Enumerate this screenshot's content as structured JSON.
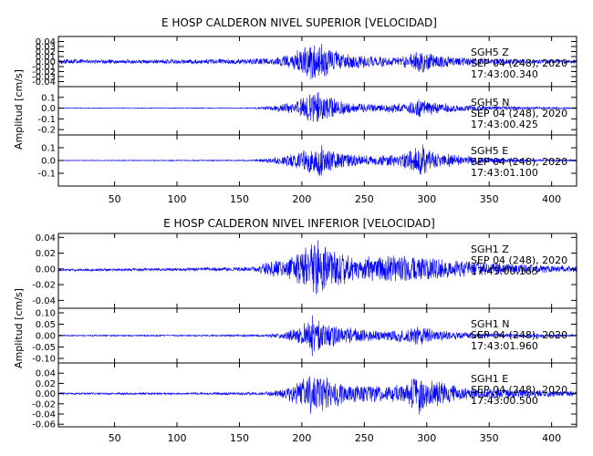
{
  "figure_colors": {
    "trace": "#0000ff",
    "axes": "#000000",
    "background": "#ffffff"
  },
  "chart_data": [
    {
      "type": "line",
      "title": "E HOSP CALDERON NIVEL SUPERIOR [VELOCIDAD]",
      "ylabel": "Amplitud [cm/s]",
      "xlabel": "",
      "xlim": [
        5,
        420
      ],
      "x_ticks": [
        50,
        100,
        150,
        200,
        250,
        300,
        350,
        400
      ],
      "x_tick_labels": [
        "50",
        "100",
        "150",
        "200",
        "250",
        "300",
        "350",
        "400"
      ],
      "grid": false,
      "panels": [
        {
          "station": "SGH5",
          "component": "Z",
          "date": "SEP 04 (248), 2020",
          "time": "17:43:00.340",
          "ylim": [
            -0.05,
            0.05
          ],
          "y_ticks": [
            0.04,
            0.03,
            0.02,
            0.01,
            0.0,
            -0.01,
            -0.02,
            -0.03,
            -0.04
          ],
          "y_tick_labels": [
            "0.04",
            "0.03",
            "0.02",
            "0.01",
            "0.00",
            "-0.01",
            "-0.02",
            "-0.03",
            "-0.04"
          ],
          "peak_amplitude": 0.042,
          "envelope": [
            [
              5,
              0.0045
            ],
            [
              40,
              0.004
            ],
            [
              100,
              0.0045
            ],
            [
              150,
              0.0055
            ],
            [
              175,
              0.007
            ],
            [
              190,
              0.015
            ],
            [
              205,
              0.035
            ],
            [
              212,
              0.042
            ],
            [
              220,
              0.03
            ],
            [
              235,
              0.016
            ],
            [
              260,
              0.01
            ],
            [
              280,
              0.011
            ],
            [
              290,
              0.02
            ],
            [
              296,
              0.026
            ],
            [
              305,
              0.014
            ],
            [
              340,
              0.008
            ],
            [
              380,
              0.005
            ],
            [
              420,
              0.004
            ]
          ]
        },
        {
          "station": "SGH5",
          "component": "N",
          "date": "SEP 04 (248), 2020",
          "time": "17:43:00.425",
          "ylim": [
            -0.25,
            0.2
          ],
          "y_ticks": [
            0.1,
            0.0,
            -0.1,
            -0.2
          ],
          "y_tick_labels": [
            "0.1",
            "0.0",
            "-0.1",
            "-0.2"
          ],
          "peak_amplitude": 0.2,
          "envelope": [
            [
              5,
              0.003
            ],
            [
              100,
              0.004
            ],
            [
              160,
              0.005
            ],
            [
              175,
              0.02
            ],
            [
              195,
              0.06
            ],
            [
              205,
              0.14
            ],
            [
              212,
              0.2
            ],
            [
              222,
              0.11
            ],
            [
              240,
              0.045
            ],
            [
              265,
              0.035
            ],
            [
              285,
              0.05
            ],
            [
              295,
              0.1
            ],
            [
              305,
              0.06
            ],
            [
              330,
              0.03
            ],
            [
              380,
              0.012
            ],
            [
              420,
              0.008
            ]
          ]
        },
        {
          "station": "SGH5",
          "component": "E",
          "date": "SEP 04 (248), 2020",
          "time": "17:43:01.100",
          "ylim": [
            -0.2,
            0.2
          ],
          "y_ticks": [
            0.1,
            0.0,
            -0.1
          ],
          "y_tick_labels": [
            "0.1",
            "0.0",
            "-0.1"
          ],
          "peak_amplitude": 0.15,
          "envelope": [
            [
              5,
              0.003
            ],
            [
              100,
              0.004
            ],
            [
              160,
              0.005
            ],
            [
              175,
              0.02
            ],
            [
              195,
              0.06
            ],
            [
              205,
              0.1
            ],
            [
              212,
              0.15
            ],
            [
              225,
              0.08
            ],
            [
              250,
              0.04
            ],
            [
              280,
              0.05
            ],
            [
              292,
              0.12
            ],
            [
              296,
              0.14
            ],
            [
              305,
              0.07
            ],
            [
              330,
              0.035
            ],
            [
              380,
              0.012
            ],
            [
              420,
              0.008
            ]
          ]
        }
      ]
    },
    {
      "type": "line",
      "title": "E HOSP CALDERON NIVEL INFERIOR [VELOCIDAD]",
      "ylabel": "Amplitud [cm/s]",
      "xlabel": "",
      "xlim": [
        5,
        420
      ],
      "x_ticks": [
        50,
        100,
        150,
        200,
        250,
        300,
        350,
        400
      ],
      "x_tick_labels": [
        "50",
        "100",
        "150",
        "200",
        "250",
        "300",
        "350",
        "400"
      ],
      "grid": false,
      "panels": [
        {
          "station": "SGH1",
          "component": "Z",
          "date": "SEP 04 (248), 2020",
          "time": "17:43:00.165",
          "ylim": [
            -0.05,
            0.045
          ],
          "y_ticks": [
            0.04,
            0.02,
            0.0,
            -0.02,
            -0.04
          ],
          "y_tick_labels": [
            "0.04",
            "0.02",
            "0.00",
            "-0.02",
            "-0.04"
          ],
          "peak_amplitude": 0.04,
          "envelope": [
            [
              5,
              0.0015
            ],
            [
              100,
              0.002
            ],
            [
              160,
              0.003
            ],
            [
              175,
              0.01
            ],
            [
              195,
              0.018
            ],
            [
              205,
              0.03
            ],
            [
              212,
              0.04
            ],
            [
              225,
              0.026
            ],
            [
              245,
              0.016
            ],
            [
              280,
              0.018
            ],
            [
              300,
              0.016
            ],
            [
              330,
              0.01
            ],
            [
              380,
              0.006
            ],
            [
              420,
              0.004
            ]
          ]
        },
        {
          "station": "SGH1",
          "component": "N",
          "date": "SEP 04 (248), 2020",
          "time": "17:43:01.960",
          "ylim": [
            -0.12,
            0.12
          ],
          "y_ticks": [
            0.1,
            0.05,
            0.0,
            -0.05,
            -0.1
          ],
          "y_tick_labels": [
            "0.10",
            "0.05",
            "0.00",
            "-0.05",
            "-0.10"
          ],
          "peak_amplitude": 0.1,
          "envelope": [
            [
              5,
              0.003
            ],
            [
              100,
              0.003
            ],
            [
              170,
              0.005
            ],
            [
              185,
              0.015
            ],
            [
              200,
              0.045
            ],
            [
              208,
              0.1
            ],
            [
              215,
              0.07
            ],
            [
              230,
              0.04
            ],
            [
              260,
              0.025
            ],
            [
              285,
              0.03
            ],
            [
              295,
              0.05
            ],
            [
              305,
              0.025
            ],
            [
              340,
              0.012
            ],
            [
              420,
              0.005
            ]
          ]
        },
        {
          "station": "SGH1",
          "component": "E",
          "date": "SEP 04 (248), 2020",
          "time": "17:43:00.500",
          "ylim": [
            -0.065,
            0.06
          ],
          "y_ticks": [
            0.04,
            0.02,
            0.0,
            -0.02,
            -0.04,
            -0.06
          ],
          "y_tick_labels": [
            "0.04",
            "0.02",
            "0.00",
            "-0.02",
            "-0.04",
            "-0.06"
          ],
          "peak_amplitude": 0.05,
          "envelope": [
            [
              5,
              0.002
            ],
            [
              100,
              0.002
            ],
            [
              170,
              0.003
            ],
            [
              185,
              0.01
            ],
            [
              200,
              0.028
            ],
            [
              208,
              0.045
            ],
            [
              215,
              0.036
            ],
            [
              235,
              0.02
            ],
            [
              260,
              0.016
            ],
            [
              285,
              0.02
            ],
            [
              292,
              0.05
            ],
            [
              300,
              0.03
            ],
            [
              330,
              0.012
            ],
            [
              420,
              0.005
            ]
          ]
        }
      ]
    }
  ]
}
